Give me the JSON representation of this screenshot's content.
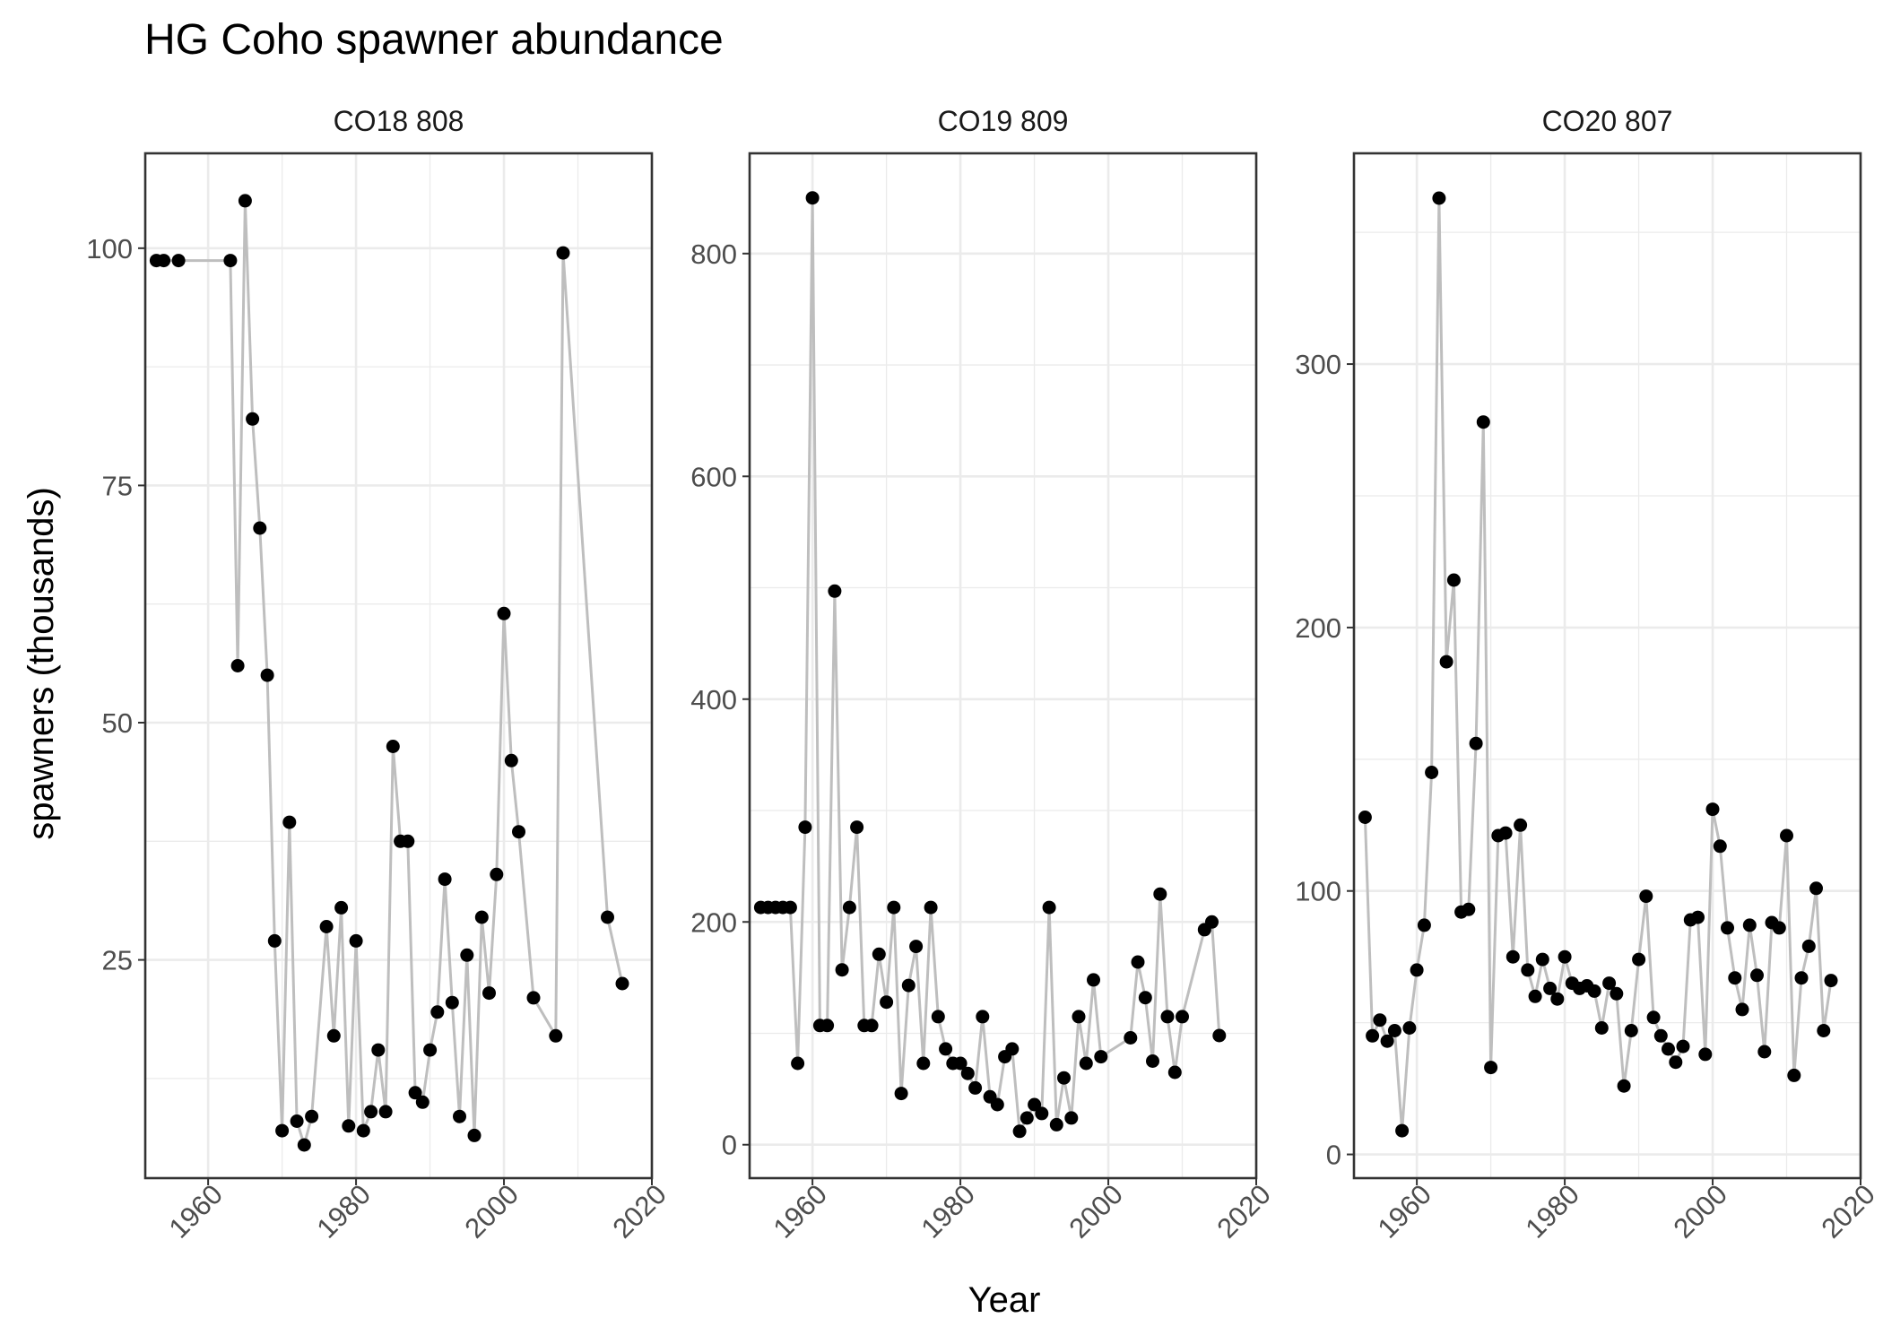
{
  "figure": {
    "title": "HG Coho spawner abundance",
    "xlabel": "Year",
    "ylabel": "spawners (thousands)"
  },
  "colors": {
    "line": "#bebebe",
    "point": "#000000"
  },
  "chart_data": [
    {
      "type": "line",
      "title": "CO18 808",
      "xlim": [
        1951.5,
        2020
      ],
      "ylim": [
        2,
        110
      ],
      "x_ticks": [
        1960,
        1980,
        2000,
        2020
      ],
      "y_ticks": [
        25,
        50,
        75,
        100
      ],
      "points": [
        [
          1953,
          98.7
        ],
        [
          1954,
          98.7
        ],
        [
          1956,
          98.7
        ],
        [
          1963,
          98.7
        ],
        [
          1964,
          56
        ],
        [
          1965,
          105
        ],
        [
          1966,
          82
        ],
        [
          1967,
          70.5
        ],
        [
          1968,
          55
        ],
        [
          1969,
          27
        ],
        [
          1970,
          7
        ],
        [
          1971,
          39.5
        ],
        [
          1972,
          8
        ],
        [
          1973,
          5.5
        ],
        [
          1974,
          8.5
        ],
        [
          1976,
          28.5
        ],
        [
          1977,
          17
        ],
        [
          1978,
          30.5
        ],
        [
          1979,
          7.5
        ],
        [
          1980,
          27
        ],
        [
          1981,
          7
        ],
        [
          1982,
          9
        ],
        [
          1983,
          15.5
        ],
        [
          1984,
          9
        ],
        [
          1985,
          47.5
        ],
        [
          1986,
          37.5
        ],
        [
          1987,
          37.5
        ],
        [
          1988,
          11
        ],
        [
          1989,
          10
        ],
        [
          1990,
          15.5
        ],
        [
          1991,
          19.5
        ],
        [
          1992,
          33.5
        ],
        [
          1993,
          20.5
        ],
        [
          1994,
          8.5
        ],
        [
          1995,
          25.5
        ],
        [
          1996,
          6.5
        ],
        [
          1997,
          29.5
        ],
        [
          1998,
          21.5
        ],
        [
          1999,
          34
        ],
        [
          2000,
          61.5
        ],
        [
          2001,
          46
        ],
        [
          2002,
          38.5
        ],
        [
          2004,
          21
        ],
        [
          2007,
          17
        ],
        [
          2008,
          99.5
        ],
        [
          2014,
          29.5
        ],
        [
          2016,
          22.5
        ]
      ]
    },
    {
      "type": "line",
      "title": "CO19 809",
      "xlim": [
        1951.5,
        2020
      ],
      "ylim": [
        -30,
        890
      ],
      "x_ticks": [
        1960,
        1980,
        2000,
        2020
      ],
      "y_ticks": [
        0,
        200,
        400,
        600,
        800
      ],
      "points": [
        [
          1953,
          213
        ],
        [
          1954,
          213
        ],
        [
          1955,
          213
        ],
        [
          1956,
          213
        ],
        [
          1957,
          213
        ],
        [
          1958,
          73
        ],
        [
          1959,
          285
        ],
        [
          1960,
          850
        ],
        [
          1961,
          107
        ],
        [
          1962,
          107
        ],
        [
          1963,
          497
        ],
        [
          1964,
          157
        ],
        [
          1965,
          213
        ],
        [
          1966,
          285
        ],
        [
          1967,
          107
        ],
        [
          1968,
          107
        ],
        [
          1969,
          171
        ],
        [
          1970,
          128
        ],
        [
          1971,
          213
        ],
        [
          1972,
          46
        ],
        [
          1973,
          143
        ],
        [
          1974,
          178
        ],
        [
          1975,
          73
        ],
        [
          1976,
          213
        ],
        [
          1977,
          115
        ],
        [
          1978,
          86
        ],
        [
          1979,
          73
        ],
        [
          1980,
          73
        ],
        [
          1981,
          64
        ],
        [
          1982,
          51
        ],
        [
          1983,
          115
        ],
        [
          1984,
          43
        ],
        [
          1985,
          36
        ],
        [
          1986,
          79
        ],
        [
          1987,
          86
        ],
        [
          1988,
          12
        ],
        [
          1989,
          24
        ],
        [
          1990,
          36
        ],
        [
          1991,
          28
        ],
        [
          1992,
          213
        ],
        [
          1993,
          18
        ],
        [
          1994,
          60
        ],
        [
          1995,
          24
        ],
        [
          1996,
          115
        ],
        [
          1997,
          73
        ],
        [
          1998,
          148
        ],
        [
          1999,
          79
        ],
        [
          2003,
          96
        ],
        [
          2004,
          164
        ],
        [
          2005,
          132
        ],
        [
          2006,
          75
        ],
        [
          2007,
          225
        ],
        [
          2008,
          115
        ],
        [
          2009,
          65
        ],
        [
          2010,
          115
        ],
        [
          2013,
          193
        ],
        [
          2014,
          200
        ],
        [
          2015,
          98
        ]
      ]
    },
    {
      "type": "line",
      "title": "CO20 807",
      "xlim": [
        1951.5,
        2020
      ],
      "ylim": [
        -9,
        380
      ],
      "x_ticks": [
        1960,
        1980,
        2000,
        2020
      ],
      "y_ticks": [
        0,
        100,
        200,
        300
      ],
      "points": [
        [
          1953,
          128
        ],
        [
          1954,
          45
        ],
        [
          1955,
          51
        ],
        [
          1956,
          43
        ],
        [
          1957,
          47
        ],
        [
          1958,
          9
        ],
        [
          1959,
          48
        ],
        [
          1960,
          70
        ],
        [
          1961,
          87
        ],
        [
          1962,
          145
        ],
        [
          1963,
          363
        ],
        [
          1964,
          187
        ],
        [
          1965,
          218
        ],
        [
          1966,
          92
        ],
        [
          1967,
          93
        ],
        [
          1968,
          156
        ],
        [
          1969,
          278
        ],
        [
          1970,
          33
        ],
        [
          1971,
          121
        ],
        [
          1972,
          122
        ],
        [
          1973,
          75
        ],
        [
          1974,
          125
        ],
        [
          1975,
          70
        ],
        [
          1976,
          60
        ],
        [
          1977,
          74
        ],
        [
          1978,
          63
        ],
        [
          1979,
          59
        ],
        [
          1980,
          75
        ],
        [
          1981,
          65
        ],
        [
          1982,
          63
        ],
        [
          1983,
          64
        ],
        [
          1984,
          62
        ],
        [
          1985,
          48
        ],
        [
          1986,
          65
        ],
        [
          1987,
          61
        ],
        [
          1988,
          26
        ],
        [
          1989,
          47
        ],
        [
          1990,
          74
        ],
        [
          1991,
          98
        ],
        [
          1992,
          52
        ],
        [
          1993,
          45
        ],
        [
          1994,
          40
        ],
        [
          1995,
          35
        ],
        [
          1996,
          41
        ],
        [
          1997,
          89
        ],
        [
          1998,
          90
        ],
        [
          1999,
          38
        ],
        [
          2000,
          131
        ],
        [
          2001,
          117
        ],
        [
          2002,
          86
        ],
        [
          2003,
          67
        ],
        [
          2004,
          55
        ],
        [
          2005,
          87
        ],
        [
          2006,
          68
        ],
        [
          2007,
          39
        ],
        [
          2008,
          88
        ],
        [
          2009,
          86
        ],
        [
          2010,
          121
        ],
        [
          2011,
          30
        ],
        [
          2012,
          67
        ],
        [
          2013,
          79
        ],
        [
          2014,
          101
        ],
        [
          2015,
          47
        ],
        [
          2016,
          66
        ]
      ]
    }
  ]
}
